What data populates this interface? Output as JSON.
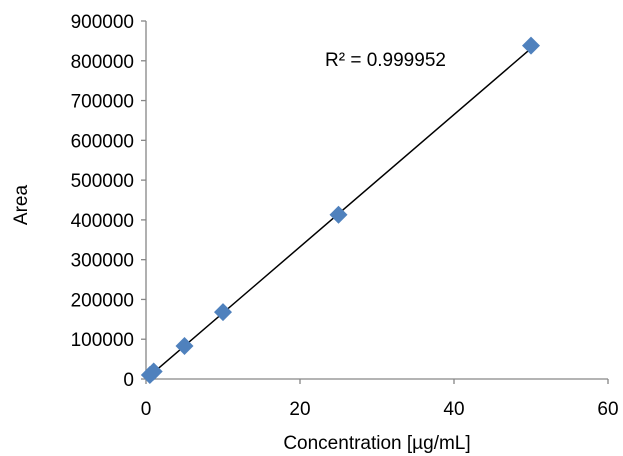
{
  "chart_data": {
    "type": "scatter",
    "title": "",
    "xlabel": "Concentration [µg/mL]",
    "ylabel": "Area",
    "xlim": [
      0,
      60
    ],
    "ylim": [
      0,
      900000
    ],
    "x_ticks": [
      0,
      20,
      40,
      60
    ],
    "y_ticks": [
      0,
      100000,
      200000,
      300000,
      400000,
      500000,
      600000,
      700000,
      800000,
      900000
    ],
    "x_tick_labels": [
      "0",
      "20",
      "40",
      "60"
    ],
    "y_tick_labels": [
      "0",
      "100000",
      "200000",
      "300000",
      "400000",
      "500000",
      "600000",
      "700000",
      "800000",
      "900000"
    ],
    "grid": false,
    "legend": "none",
    "series": [
      {
        "x": [
          0.5,
          1,
          5,
          10,
          25,
          50
        ],
        "y": [
          10000,
          19000,
          83000,
          168000,
          413000,
          838000
        ],
        "marker": "diamond",
        "color": "#4f81bd"
      }
    ],
    "trendline": {
      "type": "linear",
      "x": [
        0.5,
        50
      ],
      "y": [
        8200,
        831000
      ],
      "color": "#000000"
    },
    "annotations": [
      {
        "text": "R² = 0.999952"
      }
    ]
  }
}
